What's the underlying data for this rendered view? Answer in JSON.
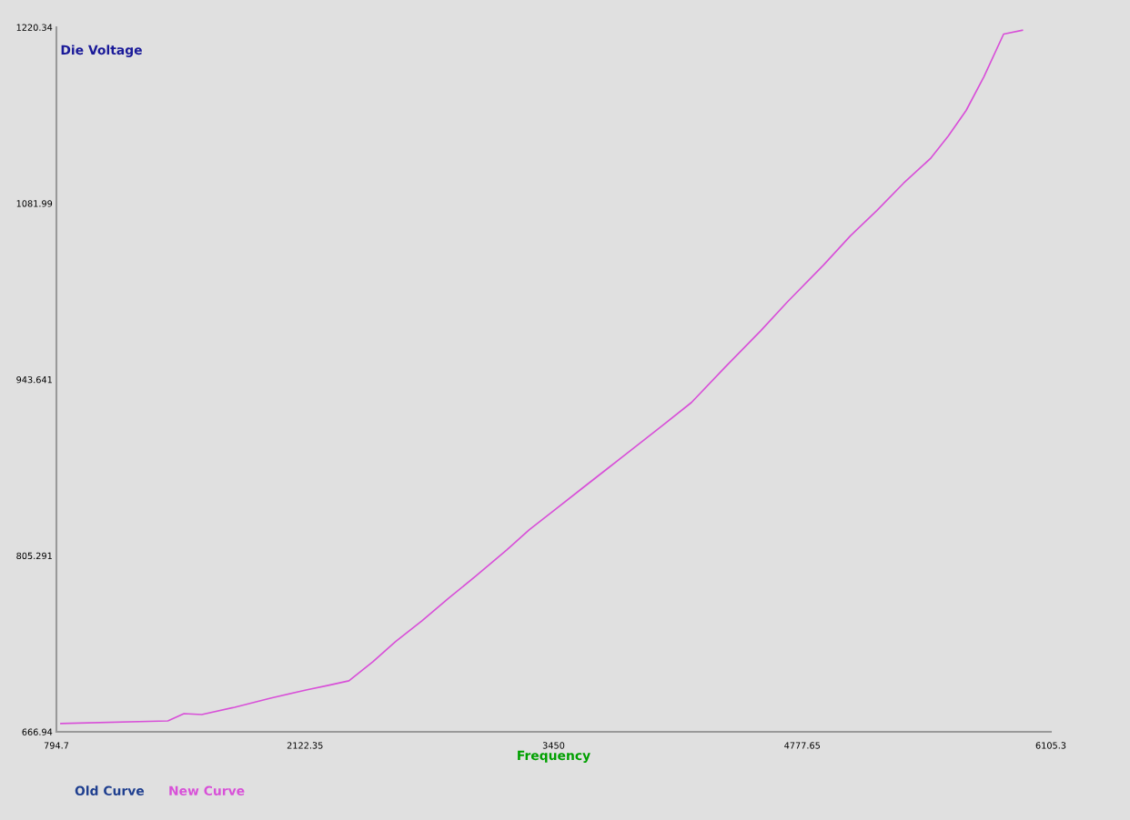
{
  "chart_data": {
    "type": "line",
    "xlabel": "Frequency",
    "ylabel": "Die Voltage",
    "x": [
      818.5,
      1390,
      1475.8,
      1571,
      1747,
      1938,
      2128,
      2247,
      2357,
      2485,
      2605,
      2747,
      2890,
      3033,
      3200,
      3319,
      3462,
      3605,
      3748,
      3890,
      4034,
      4186,
      4367,
      4557,
      4700,
      4891,
      5034,
      5176,
      5319,
      5462,
      5558,
      5653,
      5748,
      5853,
      5953
    ],
    "series": [
      {
        "name": "Old Curve",
        "color": "#1f3f8f",
        "values": [
          null,
          null,
          null,
          null,
          null,
          null,
          null,
          null,
          null,
          null,
          null,
          null,
          null,
          null,
          null,
          null,
          null,
          null,
          null,
          null,
          null,
          null,
          null,
          null,
          null,
          null,
          null,
          null,
          null,
          null,
          null,
          null,
          null,
          null,
          null
        ]
      },
      {
        "name": "New Curve",
        "color": "#d850d8",
        "values": [
          673.4,
          675.5,
          681.2,
          680.5,
          686.2,
          693.4,
          699.8,
          703.4,
          707.0,
          722.0,
          737.7,
          754.1,
          772.0,
          789.1,
          809.9,
          825.6,
          842.0,
          858.5,
          874.9,
          891.3,
          907.8,
          925.6,
          953.5,
          982.1,
          1004.9,
          1033.5,
          1056.4,
          1076.4,
          1097.9,
          1117.2,
          1135.0,
          1155.0,
          1181.5,
          1215,
          1218
        ]
      }
    ],
    "xlim": [
      794.7,
      6105.3
    ],
    "xticks": [
      794.7,
      2122.35,
      3450,
      4777.65,
      6105.3
    ],
    "ylim": [
      666.94,
      1220.34
    ],
    "yticks": [
      666.94,
      805.291,
      943.641,
      1081.99,
      1220.34
    ],
    "grid": false,
    "legend": "bottom left",
    "marker": "none",
    "line_style": "solid"
  }
}
